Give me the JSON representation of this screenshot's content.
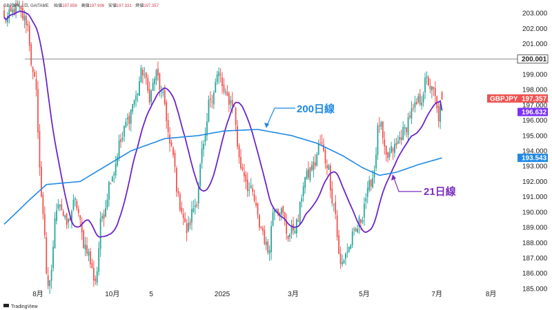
{
  "header": {
    "symbol": "GBPJPY",
    "timeframe": "1日",
    "exchange": "GAITAME",
    "open_label": "始値",
    "open": "197.856",
    "high_label": "高値",
    "high": "197.906",
    "low_label": "安値",
    "low": "197.331",
    "close_label": "終値",
    "close": "197.357"
  },
  "branding": {
    "logo_text": "TradingView"
  },
  "colors": {
    "bull": "#26a69a",
    "bear": "#ef5350",
    "ma21": "#6a24c9",
    "ma200": "#1e88e5",
    "hline": "#888888",
    "price_tag": "#ef5350",
    "ma21_tag": "#7b2ff7",
    "ma200_tag": "#1e88e5",
    "ann200": "#1e88e5",
    "ann21": "#7b2fbf"
  },
  "chart_data": {
    "type": "candlestick",
    "title": "GBPJPY 1日 GAITAME",
    "ylim": [
      184.5,
      203.5
    ],
    "yticks": [
      185,
      186,
      187,
      188,
      189,
      190,
      191,
      192,
      193,
      194,
      195,
      196,
      197,
      198,
      199,
      201,
      202,
      203
    ],
    "ytick_labels": [
      "185.000",
      "186.000",
      "187.000",
      "188.000",
      "189.000",
      "190.000",
      "191.000",
      "192.000",
      "193.000",
      "194.000",
      "195.000",
      "196.000",
      "197.000",
      "198.000",
      "199.000",
      "201.000",
      "202.000",
      "203.000"
    ],
    "xticks": [
      {
        "label": "8月",
        "index": 20
      },
      {
        "label": "10月",
        "index": 64
      },
      {
        "label": "5",
        "index": 87
      },
      {
        "label": "2025",
        "index": 129
      },
      {
        "label": "3月",
        "index": 171
      },
      {
        "label": "5月",
        "index": 213
      },
      {
        "label": "7月",
        "index": 256
      },
      {
        "label": "8月",
        "index": 288
      }
    ],
    "candle_count": 260,
    "key_points": [
      [
        0,
        202.6
      ],
      [
        8,
        203.3
      ],
      [
        13,
        202.5
      ],
      [
        18,
        198.5
      ],
      [
        23,
        190.0
      ],
      [
        26,
        184.8
      ],
      [
        32,
        190.8
      ],
      [
        37,
        189.2
      ],
      [
        42,
        190.6
      ],
      [
        48,
        187.8
      ],
      [
        54,
        185.6
      ],
      [
        58,
        189.8
      ],
      [
        64,
        192.5
      ],
      [
        69,
        194.6
      ],
      [
        73,
        196.0
      ],
      [
        77,
        197.3
      ],
      [
        82,
        199.2
      ],
      [
        86,
        197.6
      ],
      [
        90,
        199.0
      ],
      [
        94,
        197.4
      ],
      [
        99,
        194.0
      ],
      [
        104,
        190.5
      ],
      [
        108,
        188.8
      ],
      [
        113,
        190.5
      ],
      [
        118,
        194.2
      ],
      [
        122,
        197.5
      ],
      [
        127,
        199.0
      ],
      [
        131,
        197.5
      ],
      [
        135,
        197.2
      ],
      [
        140,
        193.0
      ],
      [
        146,
        191.3
      ],
      [
        152,
        189.0
      ],
      [
        156,
        187.5
      ],
      [
        160,
        190.5
      ],
      [
        164,
        190.0
      ],
      [
        168,
        188.5
      ],
      [
        173,
        189.2
      ],
      [
        178,
        192.2
      ],
      [
        183,
        193.0
      ],
      [
        187,
        194.5
      ],
      [
        191,
        193.2
      ],
      [
        195,
        190.5
      ],
      [
        199,
        186.5
      ],
      [
        203,
        187.5
      ],
      [
        207,
        188.5
      ],
      [
        211,
        189.5
      ],
      [
        214,
        191.0
      ],
      [
        218,
        192.3
      ],
      [
        222,
        195.8
      ],
      [
        226,
        193.5
      ],
      [
        231,
        194.2
      ],
      [
        236,
        195.2
      ],
      [
        241,
        196.5
      ],
      [
        246,
        197.3
      ],
      [
        250,
        198.6
      ],
      [
        254,
        197.8
      ],
      [
        257,
        196.2
      ],
      [
        259,
        197.357
      ]
    ],
    "series": [
      {
        "name": "21日線",
        "label": "21-day MA",
        "last_value": 196.632
      },
      {
        "name": "200日線",
        "label": "200-day MA",
        "last_value": 193.543
      }
    ],
    "horizontal_line": {
      "value": 200.001,
      "label": "200.001"
    },
    "price_tags": [
      {
        "label": "GBPJPY",
        "value": 197.357,
        "text": "197.357"
      },
      {
        "label": "",
        "value": 196.632,
        "text": "196.632"
      },
      {
        "label": "",
        "value": 193.543,
        "text": "193.543"
      }
    ],
    "annotations": [
      {
        "text": "200日線",
        "target": "200-day MA"
      },
      {
        "text": "21日線",
        "target": "21-day MA"
      }
    ]
  }
}
